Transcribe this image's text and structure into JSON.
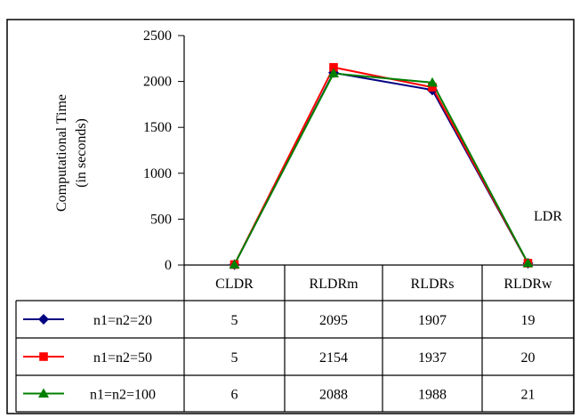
{
  "chart_data": {
    "type": "line",
    "title": "",
    "ylabel": [
      "Computational Time",
      "(in seconds)"
    ],
    "xlabel": "",
    "categories": [
      "CLDR",
      "RLDRm",
      "RLDRs",
      "RLDRw"
    ],
    "yticks": [
      0,
      500,
      1000,
      1500,
      2000,
      2500
    ],
    "ylim": [
      0,
      2500
    ],
    "grid": false,
    "legend": "data-table",
    "series": [
      {
        "name": "n1=n2=20",
        "values": [
          5,
          2095,
          1907,
          19
        ],
        "color": "#000080",
        "marker": "diamond"
      },
      {
        "name": "n1=n2=50",
        "values": [
          5,
          2154,
          1937,
          20
        ],
        "color": "#ff0000",
        "marker": "square"
      },
      {
        "name": "n1=n2=100",
        "values": [
          6,
          2088,
          1988,
          21
        ],
        "color": "#008000",
        "marker": "triangle"
      }
    ],
    "annotation": "LDR"
  }
}
